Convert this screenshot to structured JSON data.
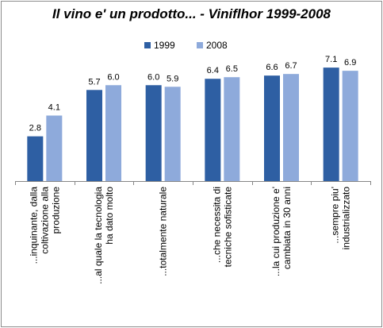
{
  "chart_data": {
    "type": "bar",
    "title": "Il vino e' un prodotto... - Viniflhor 1999-2008",
    "categories": [
      [
        "...inquinante, dalla",
        "coltivazione alla",
        "produzione"
      ],
      [
        "...al quale la tecnologia",
        "ha dato molto"
      ],
      [
        "...totalmente naturale"
      ],
      [
        "...che necessita di",
        "tecniche sofisticate"
      ],
      [
        "...la cui produzione e'",
        "cambiata in 30 anni"
      ],
      [
        "...sempre piu'",
        "industrializzato"
      ]
    ],
    "series": [
      {
        "name": "1999",
        "color": "#2e5fa3",
        "values": [
          2.8,
          5.7,
          6.0,
          6.4,
          6.6,
          7.1
        ],
        "labels": [
          "2.8",
          "5.7",
          "6.0",
          "6.4",
          "6.6",
          "7.1"
        ]
      },
      {
        "name": "2008",
        "color": "#8eaadb",
        "values": [
          4.1,
          6.0,
          5.9,
          6.5,
          6.7,
          6.9
        ],
        "labels": [
          "4.1",
          "6.0",
          "5.9",
          "6.5",
          "6.7",
          "6.9"
        ]
      }
    ],
    "ylim": [
      0,
      8
    ],
    "legend_position": "top",
    "grid": false
  }
}
